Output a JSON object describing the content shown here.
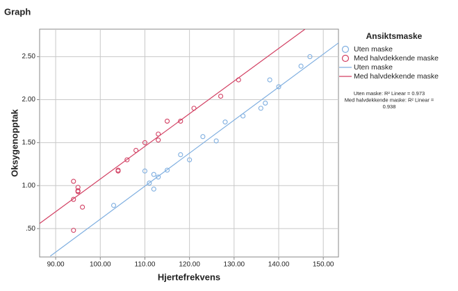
{
  "chart_data": {
    "type": "scatter",
    "title": "Graph",
    "x_label": "Hjertefrekvens",
    "y_label": "Oksygenopptak",
    "xlim": [
      86.4,
      153.4
    ],
    "ylim": [
      0.17,
      2.82
    ],
    "xticks": [
      {
        "value": 90,
        "label": "90.00"
      },
      {
        "value": 100,
        "label": "100.00"
      },
      {
        "value": 110,
        "label": "110.00"
      },
      {
        "value": 120,
        "label": "120.00"
      },
      {
        "value": 130,
        "label": "130.00"
      },
      {
        "value": 140,
        "label": "140.00"
      },
      {
        "value": 150,
        "label": "150.00"
      }
    ],
    "yticks": [
      {
        "value": 0.5,
        "label": ".50"
      },
      {
        "value": 1,
        "label": "1.00"
      },
      {
        "value": 1.5,
        "label": "1.50"
      },
      {
        "value": 2,
        "label": "2.00"
      },
      {
        "value": 2.5,
        "label": "2.50"
      }
    ],
    "grid": true,
    "legend_title": "Ansiktsmaske",
    "series": [
      {
        "name": "Uten maske",
        "type": "scatter",
        "color": "#7eaee0",
        "x": [
          103,
          110,
          111,
          112,
          112,
          113,
          115,
          118,
          120,
          123,
          126,
          128,
          132,
          136,
          137,
          138,
          140,
          145,
          147
        ],
        "values": [
          0.77,
          1.17,
          1.03,
          1.13,
          0.96,
          1.1,
          1.18,
          1.36,
          1.3,
          1.57,
          1.52,
          1.74,
          1.81,
          1.9,
          1.96,
          2.23,
          2.15,
          2.39,
          2.5
        ]
      },
      {
        "name": "Med halvdekkende maske",
        "type": "scatter",
        "color": "#d23f62",
        "x": [
          94,
          95,
          95,
          95,
          94,
          96,
          94,
          104,
          104,
          106,
          108,
          110,
          113,
          113,
          115,
          118,
          121,
          127,
          131
        ],
        "values": [
          1.05,
          0.98,
          0.94,
          0.93,
          0.84,
          0.75,
          0.48,
          1.18,
          1.17,
          1.3,
          1.41,
          1.5,
          1.6,
          1.53,
          1.75,
          1.75,
          1.9,
          2.04,
          2.23
        ]
      },
      {
        "name": "Uten maske",
        "type": "line",
        "color": "#7eaee0",
        "x": [
          88.8,
          153.4
        ],
        "values": [
          0.18,
          2.66
        ]
      },
      {
        "name": "Med halvdekkende maske",
        "type": "line",
        "color": "#d23f62",
        "x": [
          86.4,
          145.9
        ],
        "values": [
          0.56,
          2.82
        ]
      }
    ],
    "annotations": [
      "Uten maske: R² Linear = 0.973",
      "Med halvdekkende maske: R² Linear =",
      "0.938"
    ]
  }
}
